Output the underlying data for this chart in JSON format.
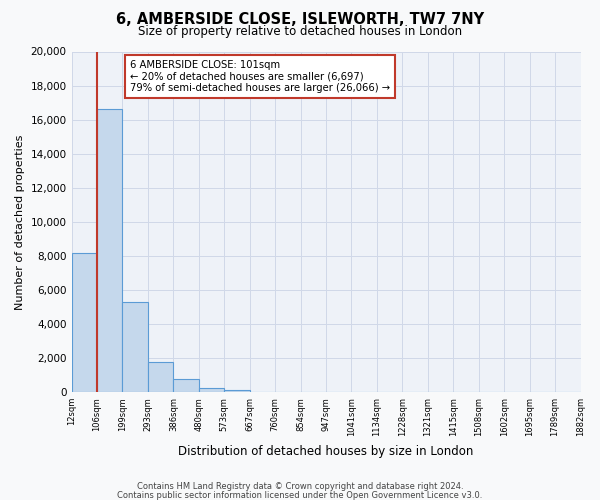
{
  "title": "6, AMBERSIDE CLOSE, ISLEWORTH, TW7 7NY",
  "subtitle": "Size of property relative to detached houses in London",
  "xlabel": "Distribution of detached houses by size in London",
  "ylabel": "Number of detached properties",
  "bin_labels": [
    "12sqm",
    "106sqm",
    "199sqm",
    "293sqm",
    "386sqm",
    "480sqm",
    "573sqm",
    "667sqm",
    "760sqm",
    "854sqm",
    "947sqm",
    "1041sqm",
    "1134sqm",
    "1228sqm",
    "1321sqm",
    "1415sqm",
    "1508sqm",
    "1602sqm",
    "1695sqm",
    "1789sqm",
    "1882sqm"
  ],
  "bar_heights": [
    8200,
    16600,
    5300,
    1800,
    750,
    250,
    150,
    0,
    0,
    0,
    0,
    0,
    0,
    0,
    0,
    0,
    0,
    0,
    0,
    0
  ],
  "bar_color": "#c5d8ec",
  "bar_edge_color": "#5b9bd5",
  "property_line_x": 1,
  "property_line_color": "#c0392b",
  "ylim": [
    0,
    20000
  ],
  "yticks": [
    0,
    2000,
    4000,
    6000,
    8000,
    10000,
    12000,
    14000,
    16000,
    18000,
    20000
  ],
  "annotation_title": "6 AMBERSIDE CLOSE: 101sqm",
  "annotation_line1": "← 20% of detached houses are smaller (6,697)",
  "annotation_line2": "79% of semi-detached houses are larger (26,066) →",
  "annotation_box_color": "#ffffff",
  "annotation_box_edge_color": "#c0392b",
  "grid_color": "#d0d8e8",
  "bg_color": "#eef2f8",
  "fig_bg_color": "#f8f9fa",
  "footer1": "Contains HM Land Registry data © Crown copyright and database right 2024.",
  "footer2": "Contains public sector information licensed under the Open Government Licence v3.0."
}
